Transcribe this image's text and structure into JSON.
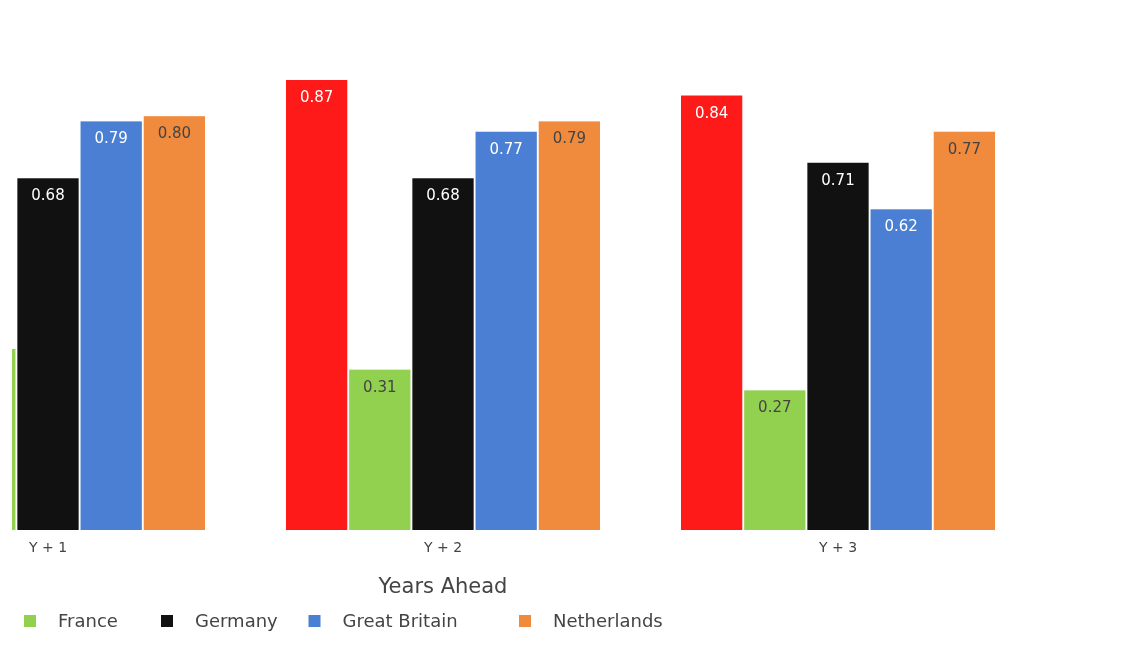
{
  "chart_data": {
    "type": "bar",
    "xlabel": "Years Ahead",
    "categories": [
      "Y + 1",
      "Y + 2",
      "Y + 3"
    ],
    "series": [
      {
        "color": "#ff1a1a",
        "values": [
          null,
          0.87,
          0.84
        ],
        "value_labels": [
          null,
          "0.87",
          "0.84"
        ]
      },
      {
        "name": "France",
        "color": "#92d050",
        "values": [
          0.35,
          0.31,
          0.27
        ],
        "value_labels": [
          null,
          "0.31",
          "0.27"
        ]
      },
      {
        "name": "Germany",
        "color": "#111111",
        "values": [
          0.68,
          0.68,
          0.71
        ],
        "value_labels": [
          "0.68",
          "0.68",
          "0.71"
        ]
      },
      {
        "name": "Great Britain",
        "color": "#4a7fd4",
        "values": [
          0.79,
          0.77,
          0.62
        ],
        "value_labels": [
          "0.79",
          "0.77",
          "0.62"
        ]
      },
      {
        "name": "Netherlands",
        "color": "#f08a3c",
        "values": [
          0.8,
          0.79,
          0.77
        ],
        "value_labels": [
          "0.80",
          "0.79",
          "0.77"
        ]
      }
    ],
    "legend": "bottom left"
  }
}
